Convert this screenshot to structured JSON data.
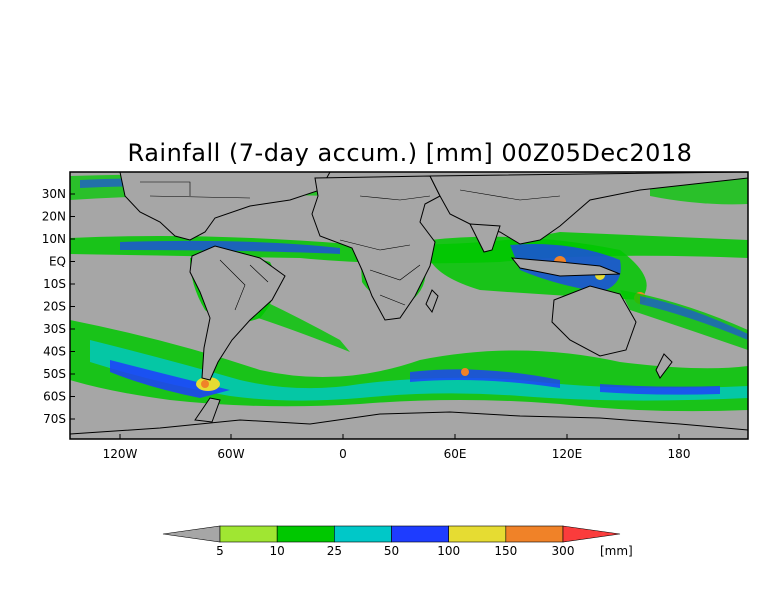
{
  "map": {
    "title": "Rainfall (7-day accum.) [mm] 00Z05Dec2018",
    "ocean_color": "#a6a6a6",
    "y_ticks": [
      "30N",
      "20N",
      "10N",
      "EQ",
      "10S",
      "20S",
      "30S",
      "40S",
      "50S",
      "60S",
      "70S"
    ],
    "x_ticks": [
      "120W",
      "60W",
      "0",
      "60E",
      "120E",
      "180"
    ]
  },
  "legend": {
    "unit": "[mm]",
    "colors": [
      "#a6a6a6",
      "#a0e632",
      "#00c800",
      "#00c8c8",
      "#1e3cff",
      "#e6dc32",
      "#f08228",
      "#fa3c3c"
    ],
    "labels": [
      "5",
      "10",
      "25",
      "50",
      "100",
      "150",
      "300"
    ]
  }
}
